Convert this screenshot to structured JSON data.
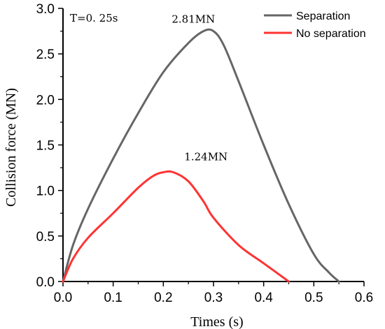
{
  "chart_data": {
    "type": "line",
    "title": "",
    "annotation_top_left": "T=0. 25s",
    "xlabel": "Times (s)",
    "ylabel": "Collision force (MN)",
    "xlim": [
      0.0,
      0.6
    ],
    "ylim": [
      0.0,
      3.0
    ],
    "xticks": [
      "0.0",
      "0.1",
      "0.2",
      "0.3",
      "0.4",
      "0.5",
      "0.6"
    ],
    "yticks": [
      "0.0",
      "0.5",
      "1.0",
      "1.5",
      "2.0",
      "2.5",
      "3.0"
    ],
    "grid": false,
    "legend_position": "top-right",
    "series": [
      {
        "name": "Separation",
        "color": "#666666",
        "x": [
          0.0,
          0.02,
          0.05,
          0.1,
          0.15,
          0.2,
          0.25,
          0.28,
          0.3,
          0.32,
          0.35,
          0.4,
          0.45,
          0.5,
          0.53,
          0.55
        ],
        "y": [
          0.0,
          0.4,
          0.8,
          1.35,
          1.85,
          2.3,
          2.62,
          2.75,
          2.75,
          2.6,
          2.2,
          1.5,
          0.85,
          0.3,
          0.1,
          0.0
        ]
      },
      {
        "name": "No separation",
        "color": "#ff3333",
        "x": [
          0.0,
          0.02,
          0.05,
          0.1,
          0.15,
          0.18,
          0.2,
          0.22,
          0.25,
          0.28,
          0.3,
          0.35,
          0.4,
          0.45
        ],
        "y": [
          0.0,
          0.25,
          0.48,
          0.75,
          1.03,
          1.16,
          1.2,
          1.2,
          1.1,
          0.88,
          0.7,
          0.4,
          0.2,
          0.0
        ]
      }
    ],
    "peak_labels": [
      {
        "text": "2.81MN",
        "x": 0.26,
        "y": 2.75
      },
      {
        "text": "1.24MN",
        "x": 0.285,
        "y": 1.24
      }
    ]
  }
}
